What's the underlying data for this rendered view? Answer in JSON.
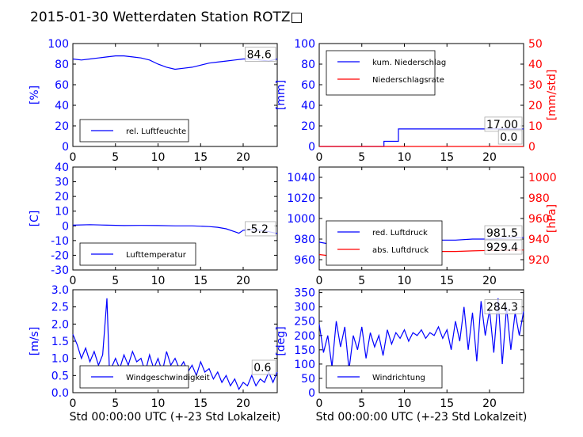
{
  "title": "2015-01-30 Wetterdaten Station ROTZ",
  "title_glyph": "□",
  "xlabel": "Std 00:00:00 UTC (+-23 Std Lokalzeit)",
  "colors": {
    "primary": "#0000ff",
    "secondary": "#ff0000",
    "light": "#8080ff",
    "axis": "#000000"
  },
  "chart_data": [
    {
      "type": "line",
      "xlim": [
        0,
        24
      ],
      "xticks": [
        0,
        5,
        10,
        15,
        20
      ],
      "ylim": [
        0,
        100
      ],
      "yticks": [
        0,
        20,
        40,
        60,
        80,
        100
      ],
      "ylabel": "[%]",
      "legend_location": "lower-left",
      "current_value": "84.6",
      "show_xlabel": false,
      "series": [
        {
          "name": "rel. Luftfeuchte",
          "color": "#0000ff",
          "axis": "left",
          "points": [
            [
              0,
              85
            ],
            [
              1,
              84
            ],
            [
              2,
              85
            ],
            [
              3,
              86
            ],
            [
              4,
              87
            ],
            [
              5,
              88
            ],
            [
              6,
              88
            ],
            [
              7,
              87
            ],
            [
              8,
              86
            ],
            [
              9,
              84
            ],
            [
              10,
              80
            ],
            [
              11,
              77
            ],
            [
              12,
              75
            ],
            [
              13,
              76
            ],
            [
              14,
              77
            ],
            [
              15,
              79
            ],
            [
              16,
              81
            ],
            [
              17,
              82
            ],
            [
              18,
              83
            ],
            [
              19,
              84
            ],
            [
              20,
              85
            ],
            [
              21,
              85
            ],
            [
              22,
              84
            ],
            [
              23,
              83
            ],
            [
              24,
              85
            ]
          ]
        }
      ]
    },
    {
      "type": "line",
      "xlim": [
        0,
        24
      ],
      "xticks": [
        0,
        5,
        10,
        15,
        20
      ],
      "ylim": [
        0,
        100
      ],
      "yticks": [
        0,
        20,
        40,
        60,
        80,
        100
      ],
      "ylabel": "[mm]",
      "ylim2": [
        0,
        50
      ],
      "yticks2": [
        0,
        10,
        20,
        30,
        40,
        50
      ],
      "ylabel2": "[mm/std]",
      "legend_location": "top-left",
      "current_value": "17.00",
      "current_value2": "0.0",
      "show_xlabel": false,
      "series": [
        {
          "name": "kum. Niederschlag",
          "color": "#0000ff",
          "axis": "left",
          "points": [
            [
              0,
              0
            ],
            [
              7.6,
              0
            ],
            [
              7.6,
              5
            ],
            [
              9.3,
              5
            ],
            [
              9.3,
              17
            ],
            [
              24,
              17
            ]
          ]
        },
        {
          "name": "Niederschlagsrate",
          "color": "#ff0000",
          "axis": "right",
          "points": [
            [
              0,
              0
            ],
            [
              24,
              0
            ]
          ]
        }
      ]
    },
    {
      "type": "line",
      "xlim": [
        0,
        24
      ],
      "xticks": [
        0,
        5,
        10,
        15,
        20
      ],
      "ylim": [
        -30,
        40
      ],
      "yticks": [
        -30,
        -20,
        -10,
        0,
        10,
        20,
        30,
        40
      ],
      "ylabel": "[C]",
      "legend_location": "lower-left",
      "current_value": "-5.2",
      "show_xlabel": false,
      "series": [
        {
          "name": "Lufttemperatur",
          "color": "#0000ff",
          "axis": "left",
          "points": [
            [
              0,
              0.5
            ],
            [
              2,
              0.8
            ],
            [
              4,
              0.5
            ],
            [
              6,
              0.2
            ],
            [
              8,
              0.3
            ],
            [
              10,
              0.2
            ],
            [
              12,
              0
            ],
            [
              14,
              0
            ],
            [
              16,
              -0.5
            ],
            [
              17,
              -1
            ],
            [
              18,
              -2
            ],
            [
              19,
              -4
            ],
            [
              19.5,
              -5
            ],
            [
              20,
              -3
            ],
            [
              21,
              -2.5
            ],
            [
              22,
              -3
            ],
            [
              23,
              -4
            ],
            [
              24,
              -5.2
            ]
          ]
        }
      ]
    },
    {
      "type": "line",
      "xlim": [
        0,
        24
      ],
      "xticks": [
        0,
        5,
        10,
        15,
        20
      ],
      "ylim": [
        950,
        1050
      ],
      "yticks": [
        960,
        980,
        1000,
        1020,
        1040
      ],
      "ylabel": "",
      "ylim2": [
        910,
        1010
      ],
      "yticks2": [
        920,
        940,
        960,
        980,
        1000
      ],
      "ylabel2": "[hPa]",
      "legend_location": "lower-left",
      "current_value": "981.5",
      "current_value2": "929.4",
      "show_xlabel": false,
      "series": [
        {
          "name": "red. Luftdruck",
          "color": "#0000ff",
          "axis": "left",
          "points": [
            [
              0,
              977
            ],
            [
              2,
              974
            ],
            [
              4,
              973
            ],
            [
              6,
              974
            ],
            [
              8,
              976
            ],
            [
              10,
              978
            ],
            [
              12,
              979
            ],
            [
              14,
              979
            ],
            [
              16,
              979
            ],
            [
              18,
              980
            ],
            [
              20,
              980
            ],
            [
              22,
              981
            ],
            [
              24,
              981.5
            ]
          ]
        },
        {
          "name": "abs. Luftdruck",
          "color": "#ff0000",
          "axis": "right",
          "points": [
            [
              0,
              925
            ],
            [
              2,
              923
            ],
            [
              4,
              922.5
            ],
            [
              6,
              923
            ],
            [
              8,
              925
            ],
            [
              10,
              926.5
            ],
            [
              12,
              927.5
            ],
            [
              14,
              928
            ],
            [
              16,
              928
            ],
            [
              18,
              928.5
            ],
            [
              20,
              929
            ],
            [
              22,
              929.2
            ],
            [
              24,
              929.4
            ]
          ]
        }
      ]
    },
    {
      "type": "line",
      "xlim": [
        0,
        24
      ],
      "xticks": [
        0,
        5,
        10,
        15,
        20
      ],
      "ylim": [
        0,
        3
      ],
      "yticks": [
        0.0,
        0.5,
        1.0,
        1.5,
        2.0,
        2.5,
        3.0
      ],
      "ytick_decimals": 1,
      "ylabel": "[m/s]",
      "legend_location": "lower-left",
      "current_value": "0.6",
      "show_xlabel": true,
      "series": [
        {
          "name": "Windgeschwindigkeit",
          "color": "#0000ff",
          "axis": "left",
          "points": [
            [
              0,
              1.7
            ],
            [
              0.5,
              1.4
            ],
            [
              1,
              1.0
            ],
            [
              1.5,
              1.3
            ],
            [
              2,
              0.9
            ],
            [
              2.5,
              1.2
            ],
            [
              3,
              0.8
            ],
            [
              3.5,
              1.1
            ],
            [
              4,
              2.75
            ],
            [
              4.3,
              0.6
            ],
            [
              5,
              1.0
            ],
            [
              5.5,
              0.7
            ],
            [
              6,
              1.1
            ],
            [
              6.5,
              0.8
            ],
            [
              7,
              1.2
            ],
            [
              7.5,
              0.9
            ],
            [
              8,
              1.0
            ],
            [
              8.5,
              0.6
            ],
            [
              9,
              1.1
            ],
            [
              9.5,
              0.7
            ],
            [
              10,
              1.0
            ],
            [
              10.5,
              0.6
            ],
            [
              11,
              1.2
            ],
            [
              11.5,
              0.8
            ],
            [
              12,
              1.0
            ],
            [
              12.5,
              0.7
            ],
            [
              13,
              0.9
            ],
            [
              13.5,
              0.6
            ],
            [
              14,
              0.8
            ],
            [
              14.5,
              0.5
            ],
            [
              15,
              0.9
            ],
            [
              15.5,
              0.6
            ],
            [
              16,
              0.7
            ],
            [
              16.5,
              0.4
            ],
            [
              17,
              0.6
            ],
            [
              17.5,
              0.3
            ],
            [
              18,
              0.5
            ],
            [
              18.5,
              0.2
            ],
            [
              19,
              0.4
            ],
            [
              19.5,
              0.1
            ],
            [
              20,
              0.3
            ],
            [
              20.5,
              0.2
            ],
            [
              21,
              0.5
            ],
            [
              21.5,
              0.2
            ],
            [
              22,
              0.4
            ],
            [
              22.5,
              0.3
            ],
            [
              23,
              0.6
            ],
            [
              23.5,
              0.3
            ],
            [
              24,
              0.6
            ]
          ]
        }
      ]
    },
    {
      "type": "line",
      "xlim": [
        0,
        24
      ],
      "xticks": [
        0,
        5,
        10,
        15,
        20
      ],
      "ylim": [
        0,
        360
      ],
      "yticks": [
        0,
        50,
        100,
        150,
        200,
        250,
        300,
        350
      ],
      "ylabel": "[deg]",
      "legend_location": "lower-left",
      "current_value": "284.3",
      "show_xlabel": true,
      "series": [
        {
          "name": "Windrichtung",
          "color": "#0000ff",
          "axis": "left",
          "points": [
            [
              0,
              240
            ],
            [
              0.5,
              140
            ],
            [
              1,
              200
            ],
            [
              1.5,
              90
            ],
            [
              2,
              250
            ],
            [
              2.5,
              160
            ],
            [
              3,
              230
            ],
            [
              3.5,
              80
            ],
            [
              4,
              200
            ],
            [
              4.5,
              150
            ],
            [
              5,
              230
            ],
            [
              5.5,
              120
            ],
            [
              6,
              210
            ],
            [
              6.5,
              160
            ],
            [
              7,
              200
            ],
            [
              7.5,
              130
            ],
            [
              8,
              220
            ],
            [
              8.5,
              170
            ],
            [
              9,
              210
            ],
            [
              9.5,
              190
            ],
            [
              10,
              220
            ],
            [
              10.5,
              180
            ],
            [
              11,
              210
            ],
            [
              11.5,
              200
            ],
            [
              12,
              220
            ],
            [
              12.5,
              190
            ],
            [
              13,
              210
            ],
            [
              13.5,
              200
            ],
            [
              14,
              230
            ],
            [
              14.5,
              190
            ],
            [
              15,
              220
            ],
            [
              15.5,
              150
            ],
            [
              16,
              250
            ],
            [
              16.5,
              180
            ],
            [
              17,
              300
            ],
            [
              17.5,
              150
            ],
            [
              18,
              280
            ],
            [
              18.5,
              110
            ],
            [
              19,
              320
            ],
            [
              19.5,
              200
            ],
            [
              20,
              290
            ],
            [
              20.5,
              140
            ],
            [
              21,
              330
            ],
            [
              21.5,
              100
            ],
            [
              22,
              300
            ],
            [
              22.5,
              150
            ],
            [
              23,
              280
            ],
            [
              23.5,
              200
            ],
            [
              24,
              284
            ]
          ]
        }
      ]
    }
  ]
}
